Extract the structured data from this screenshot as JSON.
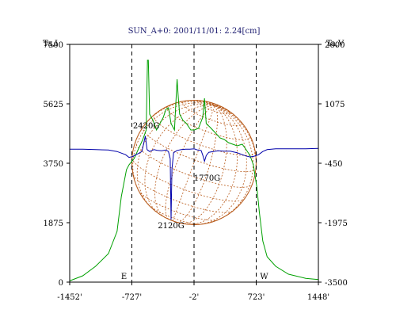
{
  "chart_data": {
    "type": "line",
    "title": "SUN_A+0: 2001/11/01: 2.24[cm]",
    "left_axis_label": "Ta,I",
    "right_axis_label": "Ta,V",
    "x_ticks": [
      "-1452'",
      "-727'",
      "-2'",
      "723'",
      "1448'"
    ],
    "x_tick_values": [
      -1452,
      -727,
      -2,
      723,
      1448
    ],
    "xlim": [
      -1452,
      1448
    ],
    "left_ticks": [
      "7500",
      "5625",
      "3750",
      "1875",
      "0"
    ],
    "left_tick_values": [
      7500,
      5625,
      3750,
      1875,
      0
    ],
    "ylim_left": [
      0,
      7500
    ],
    "right_ticks": [
      "2600",
      "1075",
      "-450",
      "-1975",
      "-3500"
    ],
    "right_tick_values": [
      2600,
      1075,
      -450,
      -1975,
      -3500
    ],
    "ylim_right": [
      -3500,
      2600
    ],
    "limb_labels": {
      "east": "E",
      "west": "W"
    },
    "disk_center": -2,
    "disk_radius_arcmin": 725,
    "colors": {
      "intensity": "#00a000",
      "polarization": "#0000aa",
      "grid": "#b85a1a",
      "frame": "#000000"
    },
    "annotations": [
      {
        "text": "2420G",
        "x": -560,
        "y_left": 4850
      },
      {
        "text": "2120G",
        "x": -270,
        "y_left": 1700
      },
      {
        "text": "1770G",
        "x": 150,
        "y_left": 3200
      }
    ],
    "series": [
      {
        "name": "Ta,I",
        "axis": "left",
        "points": [
          [
            -1452,
            40
          ],
          [
            -1300,
            200
          ],
          [
            -1150,
            500
          ],
          [
            -1000,
            900
          ],
          [
            -900,
            1600
          ],
          [
            -850,
            2700
          ],
          [
            -790,
            3550
          ],
          [
            -760,
            3700
          ],
          [
            -700,
            3900
          ],
          [
            -650,
            4200
          ],
          [
            -600,
            4500
          ],
          [
            -560,
            4800
          ],
          [
            -545,
            7000
          ],
          [
            -535,
            7000
          ],
          [
            -520,
            5300
          ],
          [
            -480,
            5100
          ],
          [
            -440,
            4800
          ],
          [
            -400,
            5000
          ],
          [
            -360,
            5200
          ],
          [
            -330,
            5450
          ],
          [
            -300,
            5500
          ],
          [
            -270,
            5000
          ],
          [
            -230,
            4800
          ],
          [
            -200,
            6400
          ],
          [
            -185,
            5800
          ],
          [
            -170,
            5300
          ],
          [
            -130,
            5100
          ],
          [
            -90,
            5000
          ],
          [
            -40,
            4800
          ],
          [
            0,
            4800
          ],
          [
            50,
            4850
          ],
          [
            100,
            5200
          ],
          [
            120,
            5800
          ],
          [
            140,
            5000
          ],
          [
            180,
            4900
          ],
          [
            250,
            4700
          ],
          [
            300,
            4550
          ],
          [
            350,
            4500
          ],
          [
            400,
            4400
          ],
          [
            450,
            4350
          ],
          [
            500,
            4300
          ],
          [
            560,
            4350
          ],
          [
            600,
            4200
          ],
          [
            650,
            4000
          ],
          [
            690,
            3700
          ],
          [
            730,
            3000
          ],
          [
            760,
            2200
          ],
          [
            800,
            1300
          ],
          [
            850,
            800
          ],
          [
            950,
            500
          ],
          [
            1100,
            250
          ],
          [
            1300,
            120
          ],
          [
            1448,
            80
          ]
        ]
      },
      {
        "name": "Ta,V",
        "axis": "right",
        "points": [
          [
            -1452,
            -90
          ],
          [
            -1300,
            -90
          ],
          [
            -1150,
            -100
          ],
          [
            -1000,
            -110
          ],
          [
            -900,
            -150
          ],
          [
            -800,
            -230
          ],
          [
            -760,
            -300
          ],
          [
            -720,
            -280
          ],
          [
            -680,
            -230
          ],
          [
            -650,
            -200
          ],
          [
            -610,
            -150
          ],
          [
            -570,
            250
          ],
          [
            -550,
            -100
          ],
          [
            -520,
            -150
          ],
          [
            -470,
            -100
          ],
          [
            -430,
            -120
          ],
          [
            -380,
            -130
          ],
          [
            -330,
            -110
          ],
          [
            -300,
            -150
          ],
          [
            -280,
            -330
          ],
          [
            -270,
            -1900
          ],
          [
            -260,
            -600
          ],
          [
            -240,
            -180
          ],
          [
            -200,
            -120
          ],
          [
            -150,
            -100
          ],
          [
            -100,
            -90
          ],
          [
            -50,
            -90
          ],
          [
            0,
            -80
          ],
          [
            40,
            -110
          ],
          [
            80,
            -120
          ],
          [
            100,
            -240
          ],
          [
            120,
            -400
          ],
          [
            140,
            -250
          ],
          [
            170,
            -170
          ],
          [
            220,
            -150
          ],
          [
            280,
            -130
          ],
          [
            350,
            -140
          ],
          [
            420,
            -140
          ],
          [
            500,
            -180
          ],
          [
            550,
            -220
          ],
          [
            600,
            -260
          ],
          [
            650,
            -290
          ],
          [
            700,
            -270
          ],
          [
            750,
            -230
          ],
          [
            800,
            -150
          ],
          [
            850,
            -100
          ],
          [
            950,
            -80
          ],
          [
            1100,
            -80
          ],
          [
            1300,
            -80
          ],
          [
            1448,
            -70
          ]
        ]
      }
    ]
  }
}
